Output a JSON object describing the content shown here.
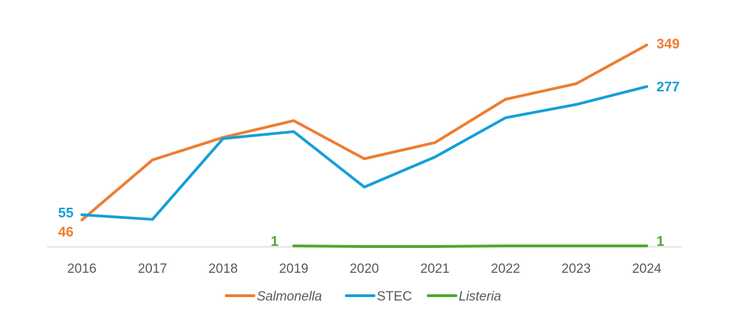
{
  "chart_data": {
    "type": "line",
    "categories": [
      "2016",
      "2017",
      "2018",
      "2019",
      "2020",
      "2021",
      "2022",
      "2023",
      "2024"
    ],
    "ylim": [
      0,
      349
    ],
    "grid": false,
    "legend_position": "bottom",
    "series": [
      {
        "name": "Salmonella",
        "italic": true,
        "color": "#ED7D31",
        "values": [
          46,
          150,
          189,
          218,
          152,
          180,
          255,
          282,
          349
        ],
        "labels": {
          "0": "46",
          "8": "349"
        }
      },
      {
        "name": "STEC",
        "italic": false,
        "color": "#159FD8",
        "values": [
          55,
          47,
          187,
          199,
          103,
          155,
          223,
          246,
          277
        ],
        "labels": {
          "0": "55",
          "8": "277"
        }
      },
      {
        "name": "Listeria",
        "italic": true,
        "color": "#4EA72E",
        "values": [
          null,
          null,
          null,
          1,
          0,
          0,
          1,
          1,
          1
        ],
        "labels": {
          "3": "1",
          "8": "1"
        }
      }
    ]
  }
}
